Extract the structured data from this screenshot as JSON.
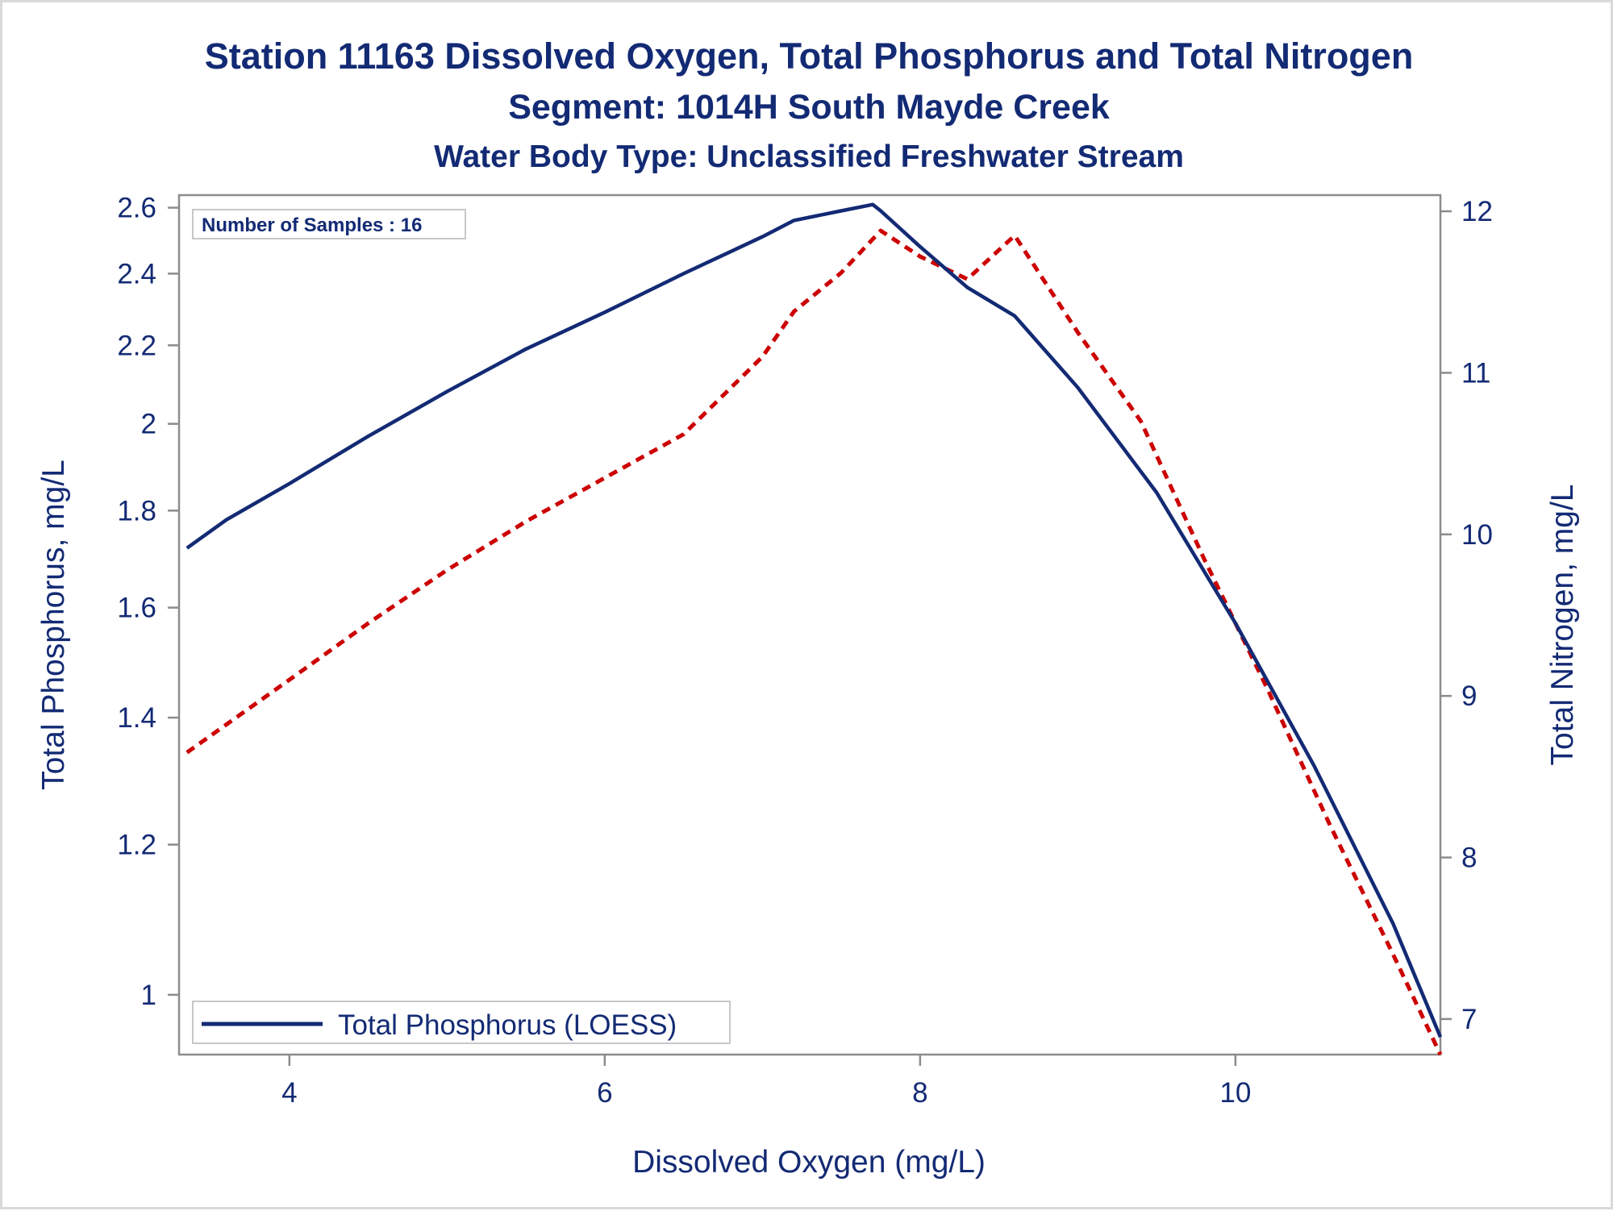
{
  "chart_data": {
    "type": "line",
    "title": "Station 11163  Dissolved Oxygen, Total Phosphorus and Total Nitrogen",
    "subtitle": "Segment: 1014H  South Mayde Creek",
    "subtitle2": "Water Body Type: Unclassified Freshwater Stream",
    "xlabel": "Dissolved Oxygen (mg/L)",
    "ylabel": "Total Phosphorus, mg/L",
    "y2label": "Total Nitrogen, mg/L",
    "xlim": [
      3.3,
      11.3
    ],
    "ylim": [
      0.93,
      2.64
    ],
    "y_scale": "log",
    "y2lim": [
      6.78,
      12.1
    ],
    "x_ticks": [
      "4",
      "6",
      "8",
      "10"
    ],
    "y_ticks": [
      "1",
      "1.2",
      "1.4",
      "1.6",
      "1.8",
      "2",
      "2.2",
      "2.4",
      "2.6"
    ],
    "y2_ticks": [
      "7",
      "8",
      "9",
      "10",
      "11",
      "12"
    ],
    "annotation": "Number of Samples : 16",
    "legend": {
      "position": "bottom-left",
      "label": "Total Phosphorus (LOESS)"
    },
    "colors": {
      "phosphorus": "#132a74",
      "nitrogen": "#cc0000",
      "text": "#132a74"
    },
    "series": [
      {
        "key": "phosphorus",
        "axis": "left",
        "style": "solid",
        "x": [
          3.35,
          3.6,
          4.0,
          4.5,
          5.0,
          5.5,
          6.0,
          6.5,
          7.0,
          7.2,
          7.5,
          7.7,
          7.75,
          8.0,
          8.3,
          8.6,
          9.0,
          9.5,
          10.0,
          10.5,
          11.0,
          11.3
        ],
        "y": [
          1.72,
          1.78,
          1.86,
          1.97,
          2.08,
          2.19,
          2.29,
          2.4,
          2.51,
          2.56,
          2.59,
          2.61,
          2.59,
          2.48,
          2.36,
          2.28,
          2.09,
          1.84,
          1.57,
          1.32,
          1.09,
          0.95
        ]
      },
      {
        "key": "nitrogen",
        "axis": "right",
        "style": "dashed",
        "x": [
          3.35,
          4.0,
          4.5,
          5.0,
          5.5,
          6.0,
          6.5,
          7.0,
          7.2,
          7.5,
          7.75,
          8.0,
          8.3,
          8.6,
          9.0,
          9.4,
          9.8,
          10.2,
          10.6,
          11.0,
          11.3
        ],
        "y": [
          8.65,
          9.1,
          9.45,
          9.78,
          10.08,
          10.35,
          10.62,
          11.1,
          11.38,
          11.62,
          11.88,
          11.72,
          11.58,
          11.85,
          11.25,
          10.7,
          9.85,
          9.05,
          8.2,
          7.4,
          6.78
        ]
      }
    ]
  }
}
